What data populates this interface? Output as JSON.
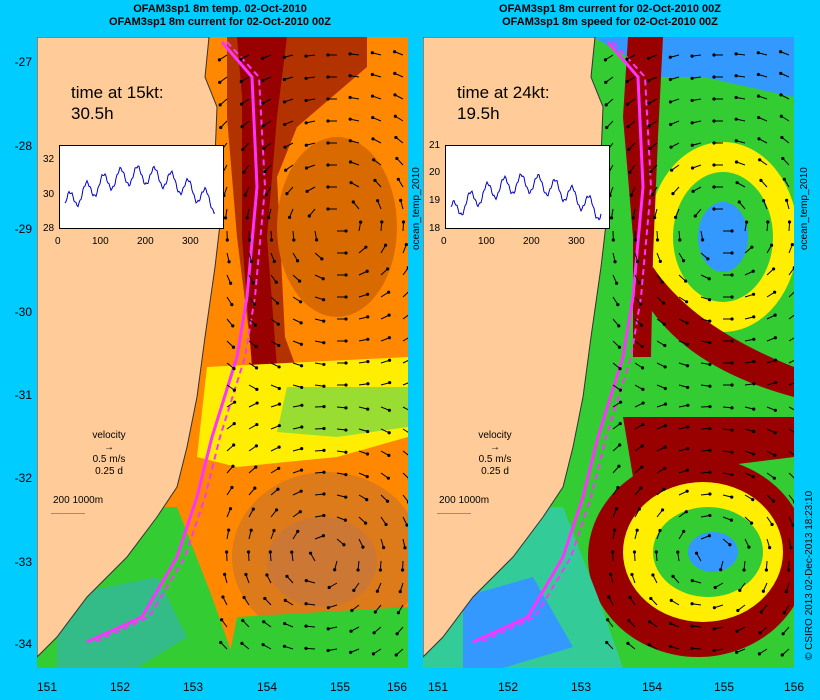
{
  "titles": {
    "left_line1": "OFAM3sp1 8m temp. 02-Oct-2010",
    "left_line2": "OFAM3sp1 8m current for 02-Oct-2010 00Z",
    "right_line1": "OFAM3sp1 8m current for 02-Oct-2010 00Z",
    "right_line2": "OFAM3sp1 8m speed for 02-Oct-2010 00Z"
  },
  "y_axis_labels": [
    "-27",
    "-28",
    "-29",
    "-30",
    "-31",
    "-32",
    "-33",
    "-34"
  ],
  "x_axis_labels": [
    "151",
    "152",
    "153",
    "154",
    "155",
    "156"
  ],
  "left_panel": {
    "time_label": "time at 15kt:",
    "time_value": "30.5h",
    "inset_y_ticks": [
      "32",
      "30",
      "28"
    ],
    "inset_x_ticks": [
      "0",
      "100",
      "200",
      "300"
    ],
    "side_label": "ocean_temp_2010",
    "velocity_label": "velocity",
    "velocity_speed": "0.5 m/s",
    "velocity_time": "0.25 d",
    "depth_scale": "200  1000m"
  },
  "right_panel": {
    "time_label": "time at 24kt:",
    "time_value": "19.5h",
    "inset_y_ticks": [
      "21",
      "20",
      "19",
      "18"
    ],
    "inset_x_ticks": [
      "0",
      "100",
      "200",
      "300"
    ],
    "side_label": "ocean_temp_2010",
    "velocity_label": "velocity",
    "velocity_speed": "0.5 m/s",
    "velocity_time": "0.25 d",
    "depth_scale": "200  1000m"
  },
  "copyright": "© CSIRO 2013   02-Dec-2013 18:23:10",
  "colors": {
    "background": "#00ccff",
    "land": "#ffcc99",
    "track": "#ff33ff",
    "warm": "#990000",
    "orange": "#ff8800",
    "yellow": "#ffff00",
    "green": "#33cc33",
    "blue": "#3399ff"
  }
}
